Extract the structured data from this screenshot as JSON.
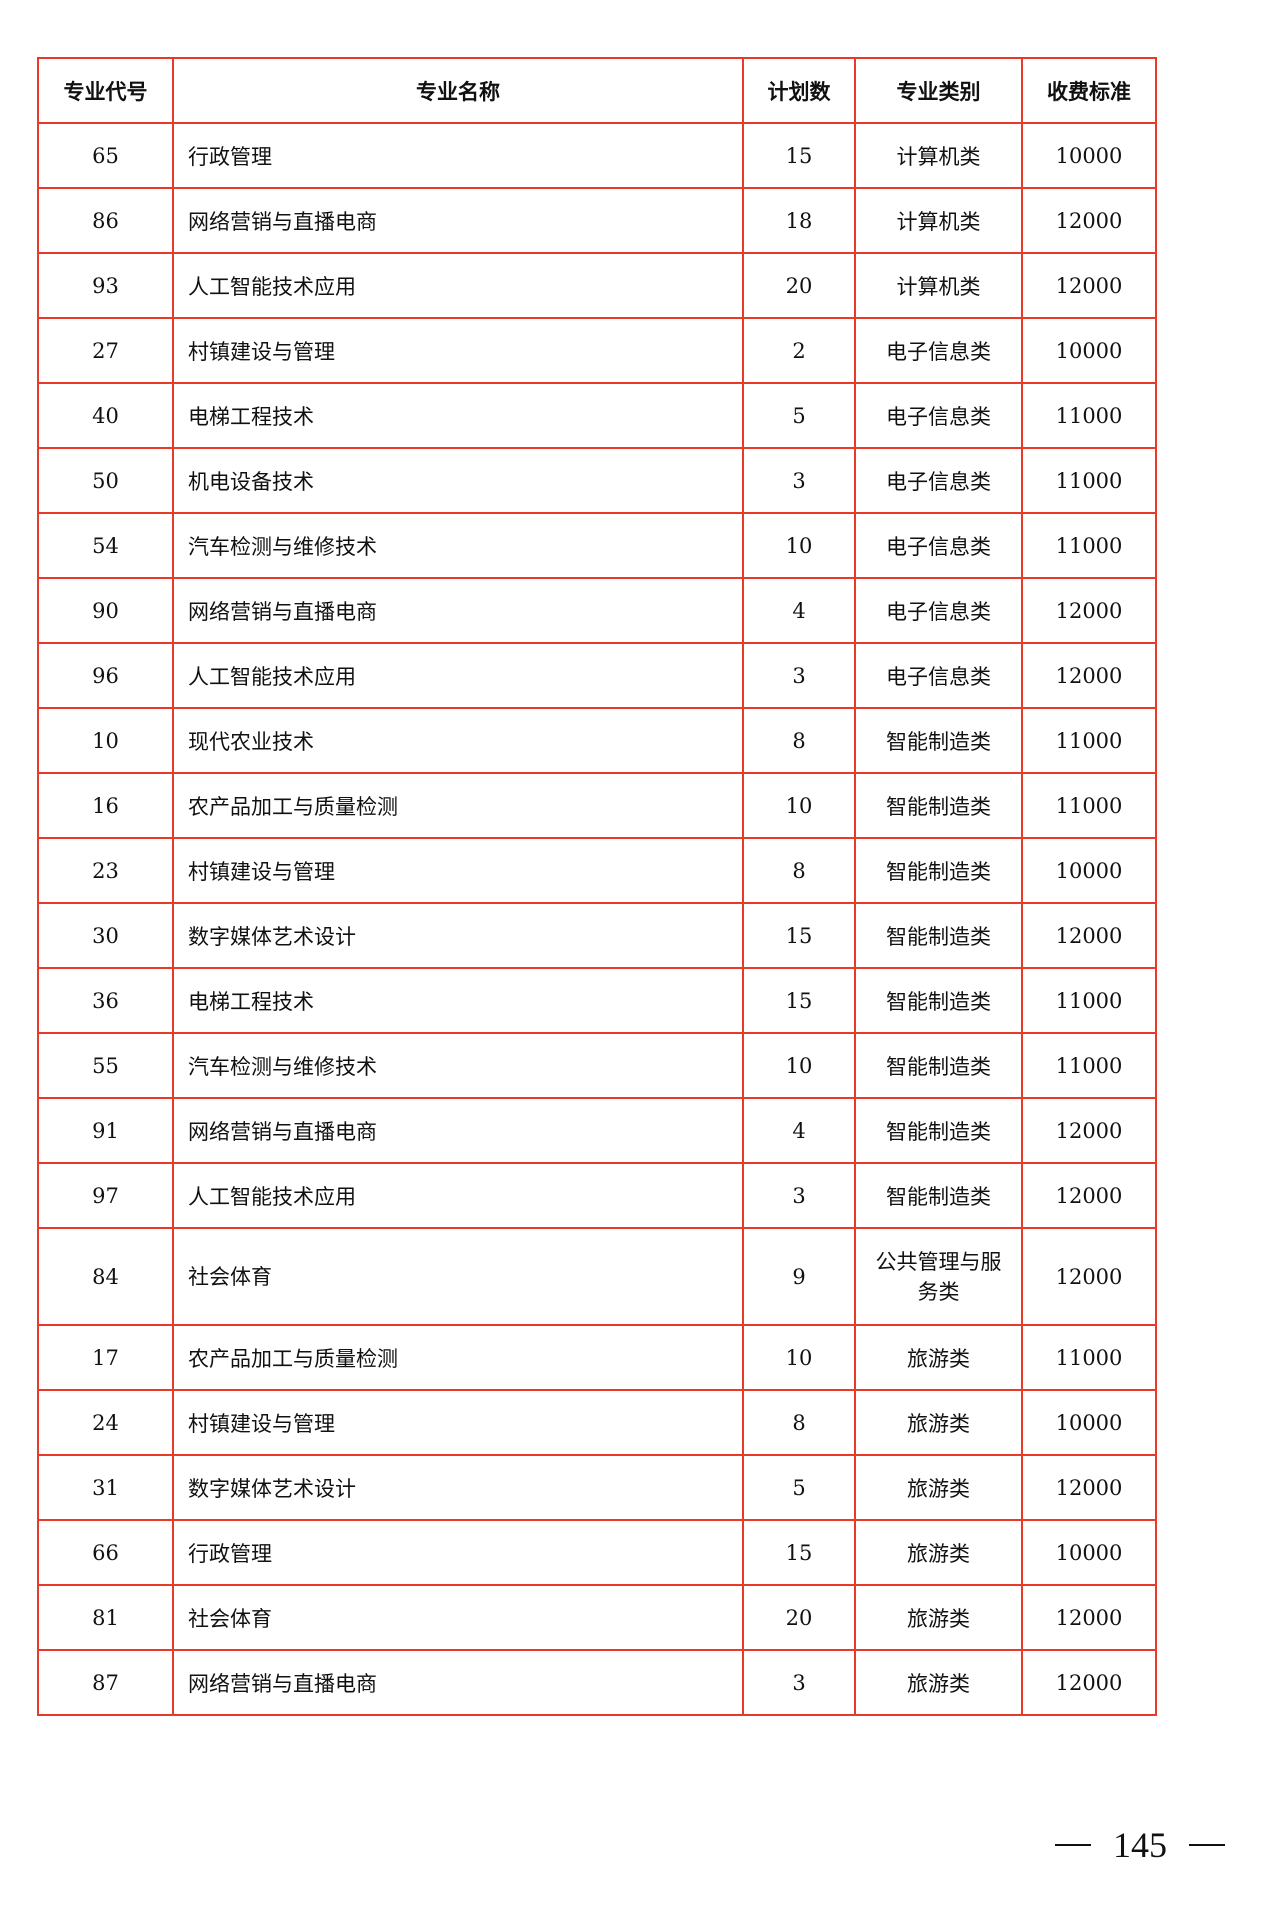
{
  "table": {
    "headers": [
      "专业代号",
      "专业名称",
      "计划数",
      "专业类别",
      "收费标准"
    ],
    "rows": [
      [
        "65",
        "行政管理",
        "15",
        "计算机类",
        "10000"
      ],
      [
        "86",
        "网络营销与直播电商",
        "18",
        "计算机类",
        "12000"
      ],
      [
        "93",
        "人工智能技术应用",
        "20",
        "计算机类",
        "12000"
      ],
      [
        "27",
        "村镇建设与管理",
        "2",
        "电子信息类",
        "10000"
      ],
      [
        "40",
        "电梯工程技术",
        "5",
        "电子信息类",
        "11000"
      ],
      [
        "50",
        "机电设备技术",
        "3",
        "电子信息类",
        "11000"
      ],
      [
        "54",
        "汽车检测与维修技术",
        "10",
        "电子信息类",
        "11000"
      ],
      [
        "90",
        "网络营销与直播电商",
        "4",
        "电子信息类",
        "12000"
      ],
      [
        "96",
        "人工智能技术应用",
        "3",
        "电子信息类",
        "12000"
      ],
      [
        "10",
        "现代农业技术",
        "8",
        "智能制造类",
        "11000"
      ],
      [
        "16",
        "农产品加工与质量检测",
        "10",
        "智能制造类",
        "11000"
      ],
      [
        "23",
        "村镇建设与管理",
        "8",
        "智能制造类",
        "10000"
      ],
      [
        "30",
        "数字媒体艺术设计",
        "15",
        "智能制造类",
        "12000"
      ],
      [
        "36",
        "电梯工程技术",
        "15",
        "智能制造类",
        "11000"
      ],
      [
        "55",
        "汽车检测与维修技术",
        "10",
        "智能制造类",
        "11000"
      ],
      [
        "91",
        "网络营销与直播电商",
        "4",
        "智能制造类",
        "12000"
      ],
      [
        "97",
        "人工智能技术应用",
        "3",
        "智能制造类",
        "12000"
      ],
      [
        "84",
        "社会体育",
        "9",
        "公共管理与服务类",
        "12000"
      ],
      [
        "17",
        "农产品加工与质量检测",
        "10",
        "旅游类",
        "11000"
      ],
      [
        "24",
        "村镇建设与管理",
        "8",
        "旅游类",
        "10000"
      ],
      [
        "31",
        "数字媒体艺术设计",
        "5",
        "旅游类",
        "12000"
      ],
      [
        "66",
        "行政管理",
        "15",
        "旅游类",
        "10000"
      ],
      [
        "81",
        "社会体育",
        "20",
        "旅游类",
        "12000"
      ],
      [
        "87",
        "网络营销与直播电商",
        "3",
        "旅游类",
        "12000"
      ]
    ]
  },
  "page_number": "145",
  "colors": {
    "border": "#e83a2a"
  }
}
